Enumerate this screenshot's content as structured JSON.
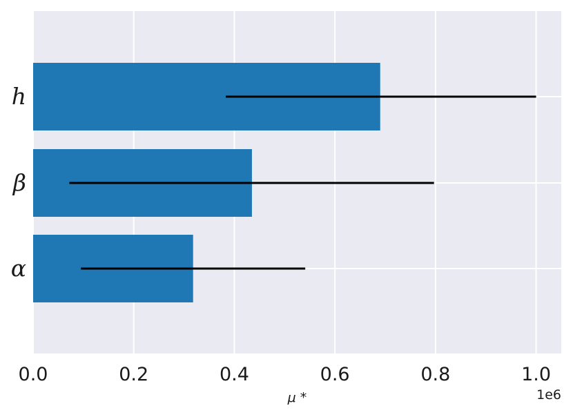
{
  "chart_data": {
    "type": "bar",
    "orientation": "horizontal",
    "categories": [
      "h",
      "β",
      "α"
    ],
    "values": [
      0.69,
      0.435,
      0.318
    ],
    "error_ranges": [
      [
        0.383,
        1.0
      ],
      [
        0.072,
        0.797
      ],
      [
        0.095,
        0.541
      ]
    ],
    "xlabel": "μ *",
    "ylabel": "",
    "title": "",
    "xlim": [
      0.0,
      1.05
    ],
    "xticks": [
      "0.0",
      "0.2",
      "0.4",
      "0.6",
      "0.8",
      "1.0"
    ],
    "xtick_values": [
      0.0,
      0.2,
      0.4,
      0.6,
      0.8,
      1.0
    ],
    "offset_text": "1e6",
    "grid": true,
    "legend": "none",
    "colors": {
      "bar": "#1f77b4",
      "error": "#000000",
      "background": "#eaeaf2",
      "grid": "#ffffff"
    }
  }
}
